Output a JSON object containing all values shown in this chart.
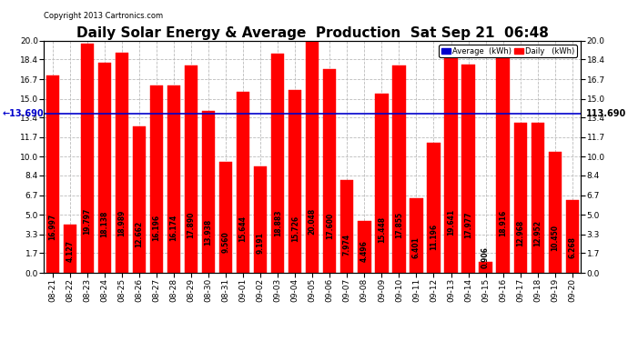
{
  "title": "Daily Solar Energy & Average  Production  Sat Sep 21  06:48",
  "copyright": "Copyright 2013 Cartronics.com",
  "categories": [
    "08-21",
    "08-22",
    "08-23",
    "08-24",
    "08-25",
    "08-26",
    "08-27",
    "08-28",
    "08-29",
    "08-30",
    "08-31",
    "09-01",
    "09-02",
    "09-03",
    "09-04",
    "09-05",
    "09-06",
    "09-07",
    "09-08",
    "09-09",
    "09-10",
    "09-11",
    "09-12",
    "09-13",
    "09-14",
    "09-15",
    "09-16",
    "09-17",
    "09-18",
    "09-19",
    "09-20"
  ],
  "values": [
    16.997,
    4.127,
    19.797,
    18.138,
    18.989,
    12.662,
    16.196,
    16.174,
    17.89,
    13.938,
    9.56,
    15.644,
    9.191,
    18.883,
    15.726,
    20.048,
    17.6,
    7.974,
    4.496,
    15.448,
    17.855,
    6.401,
    11.196,
    19.641,
    17.977,
    0.906,
    18.916,
    12.968,
    12.952,
    10.45,
    6.268
  ],
  "average_value": 13.69,
  "bar_color": "#FF0000",
  "average_line_color": "#0000CC",
  "background_color": "#FFFFFF",
  "grid_color": "#BBBBBB",
  "ylim": [
    0.0,
    20.0
  ],
  "yticks": [
    0.0,
    1.7,
    3.3,
    5.0,
    6.7,
    8.4,
    10.0,
    11.7,
    13.4,
    15.0,
    16.7,
    18.4,
    20.0
  ],
  "legend_avg_color": "#0000CC",
  "legend_daily_color": "#FF0000",
  "legend_avg_label": "Average  (kWh)",
  "legend_daily_label": "Daily   (kWh)",
  "value_fontsize": 5.5,
  "title_fontsize": 11,
  "tick_fontsize": 6.5,
  "avg_label_fontsize": 7,
  "avg_line_value_text": "13.690"
}
